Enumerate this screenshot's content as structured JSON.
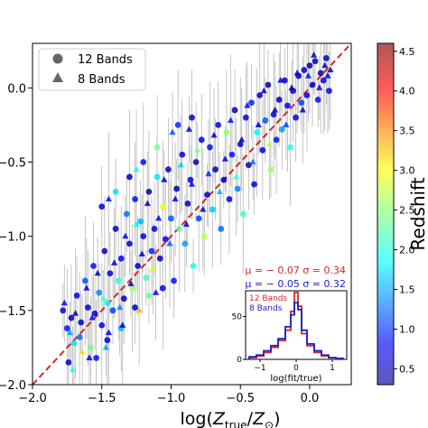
{
  "chart_data": {
    "type": "scatter",
    "xlabel_math": {
      "base": "log(",
      "Z1": "Z",
      "sub1": "true",
      "slash": "/",
      "Z2": "Z",
      "sub2": "⊙",
      "close": ")"
    },
    "ylabel": "",
    "xlim": [
      -2.0,
      0.3
    ],
    "ylim": [
      -2.0,
      0.3
    ],
    "x_ticks": [
      -2.0,
      -1.5,
      -1.0,
      -0.5,
      0.0
    ],
    "x_tick_labels": [
      "−2.0",
      "−1.5",
      "−1.0",
      "−0.5",
      "0.0"
    ],
    "y_ticks": [
      -2.0,
      -1.5,
      -1.0,
      -0.5,
      0.0
    ],
    "y_tick_labels": [
      "−2.0",
      "−1.5",
      "−1.0",
      "−0.5",
      "0.0"
    ],
    "grid": false,
    "legend": {
      "placement": "top-left",
      "entries": [
        {
          "label": "12 Bands",
          "marker": "circle"
        },
        {
          "label": "8 Bands",
          "marker": "triangle"
        }
      ]
    },
    "one_to_one_line": {
      "style": "dashed",
      "color": "#d62728",
      "from": [
        -2.0,
        -2.0
      ],
      "to": [
        0.3,
        0.3
      ]
    },
    "stats": [
      {
        "label": "12 Bands",
        "text": "μ = − 0.07  σ = 0.34",
        "color": "#d62728"
      },
      {
        "label": "8 Bands",
        "text": "μ = − 0.05  σ = 0.32",
        "color": "#1f1fc8"
      }
    ],
    "colorbar": {
      "label": "Redshift",
      "range": [
        0.3,
        4.6
      ],
      "ticks": [
        0.5,
        1.0,
        1.5,
        2.0,
        2.5,
        3.0,
        3.5,
        4.0,
        4.5
      ],
      "tick_labels": [
        "0.5",
        "1.0",
        "1.5",
        "2.0",
        "2.5",
        "3.0",
        "3.5",
        "4.0",
        "4.5"
      ],
      "colormap": "jet"
    },
    "series": [
      {
        "name": "12 Bands",
        "marker": "circle",
        "points": [
          [
            -1.78,
            -1.5,
            0.7
          ],
          [
            -1.75,
            -1.62,
            0.9
          ],
          [
            -1.72,
            -1.55,
            0.6
          ],
          [
            -1.7,
            -1.72,
            1.8
          ],
          [
            -1.68,
            -1.4,
            0.8
          ],
          [
            -1.65,
            -1.58,
            0.5
          ],
          [
            -1.62,
            -1.3,
            1.2
          ],
          [
            -1.6,
            -1.48,
            0.7
          ],
          [
            -1.58,
            -1.75,
            2.4
          ],
          [
            -1.56,
            -1.2,
            0.9
          ],
          [
            -1.55,
            -1.52,
            0.6
          ],
          [
            -1.52,
            -1.38,
            1.4
          ],
          [
            -1.5,
            -1.6,
            0.8
          ],
          [
            -1.48,
            -1.1,
            0.5
          ],
          [
            -1.46,
            -1.45,
            1.9
          ],
          [
            -1.44,
            -1.25,
            0.7
          ],
          [
            -1.42,
            -1.5,
            1.1
          ],
          [
            -1.4,
            -0.95,
            0.6
          ],
          [
            -1.38,
            -1.3,
            2.1
          ],
          [
            -1.36,
            -1.15,
            0.8
          ],
          [
            -1.34,
            -1.42,
            0.5
          ],
          [
            -1.32,
            -0.85,
            1.3
          ],
          [
            -1.3,
            -1.05,
            0.7
          ],
          [
            -1.28,
            -1.35,
            2.6
          ],
          [
            -1.26,
            -0.75,
            0.9
          ],
          [
            -1.24,
            -1.2,
            0.6
          ],
          [
            -1.22,
            -0.9,
            1.6
          ],
          [
            -1.2,
            -1.0,
            0.8
          ],
          [
            -1.18,
            -1.28,
            2.2
          ],
          [
            -1.16,
            -0.7,
            0.5
          ],
          [
            -1.14,
            -1.1,
            1.0
          ],
          [
            -1.12,
            -0.95,
            0.7
          ],
          [
            -1.1,
            -0.6,
            1.8
          ],
          [
            -1.08,
            -1.15,
            0.6
          ],
          [
            -1.06,
            -0.8,
            2.9
          ],
          [
            -1.04,
            -1.02,
            0.8
          ],
          [
            -1.02,
            -0.55,
            0.6
          ],
          [
            -1.0,
            -0.88,
            1.2
          ],
          [
            -0.98,
            -1.3,
            0.9
          ],
          [
            -0.96,
            -0.68,
            0.5
          ],
          [
            -0.94,
            -0.95,
            2.3
          ],
          [
            -0.92,
            -0.45,
            0.7
          ],
          [
            -0.9,
            -1.05,
            1.5
          ],
          [
            -0.88,
            -0.78,
            0.6
          ],
          [
            -0.86,
            -0.62,
            0.8
          ],
          [
            -0.84,
            -1.2,
            2.0
          ],
          [
            -0.82,
            -0.5,
            0.5
          ],
          [
            -0.8,
            -0.88,
            1.1
          ],
          [
            -0.78,
            -0.35,
            0.7
          ],
          [
            -0.76,
            -1.0,
            2.7
          ],
          [
            -0.74,
            -0.72,
            0.6
          ],
          [
            -0.72,
            -0.4,
            0.9
          ],
          [
            -0.7,
            -0.82,
            1.7
          ],
          [
            -0.68,
            -0.55,
            0.5
          ],
          [
            -0.66,
            -0.25,
            0.8
          ],
          [
            -0.64,
            -0.95,
            1.3
          ],
          [
            -0.62,
            -0.62,
            0.6
          ],
          [
            -0.6,
            -0.3,
            2.5
          ],
          [
            -0.58,
            -0.75,
            0.7
          ],
          [
            -0.56,
            -0.45,
            0.9
          ],
          [
            -0.54,
            -0.15,
            0.5
          ],
          [
            -0.52,
            -0.68,
            1.4
          ],
          [
            -0.5,
            -0.38,
            0.6
          ],
          [
            -0.48,
            -0.85,
            2.2
          ],
          [
            -0.46,
            -0.2,
            0.8
          ],
          [
            -0.44,
            -0.52,
            0.5
          ],
          [
            -0.42,
            -0.1,
            1.0
          ],
          [
            -0.4,
            -0.65,
            0.7
          ],
          [
            -0.38,
            -0.3,
            1.9
          ],
          [
            -0.36,
            -0.05,
            0.6
          ],
          [
            -0.34,
            -0.42,
            0.8
          ],
          [
            -0.32,
            -0.22,
            1.2
          ],
          [
            -0.3,
            0.02,
            0.5
          ],
          [
            -0.28,
            -0.55,
            2.6
          ],
          [
            -0.26,
            -0.18,
            0.7
          ],
          [
            -0.24,
            -0.35,
            0.9
          ],
          [
            -0.22,
            -0.08,
            0.6
          ],
          [
            -0.2,
            -0.28,
            1.5
          ],
          [
            -0.18,
            0.05,
            0.5
          ],
          [
            -0.16,
            -0.12,
            0.8
          ],
          [
            -0.14,
            -0.4,
            2.0
          ],
          [
            -0.12,
            -0.02,
            0.6
          ],
          [
            -0.1,
            -0.2,
            0.7
          ],
          [
            -0.08,
            0.08,
            0.5
          ],
          [
            -0.06,
            -0.1,
            1.1
          ],
          [
            -0.04,
            0.12,
            0.6
          ],
          [
            -0.02,
            -0.05,
            0.8
          ],
          [
            0.0,
            0.15,
            0.5
          ],
          [
            0.02,
            0.02,
            0.7
          ],
          [
            0.04,
            0.18,
            0.6
          ],
          [
            0.06,
            -0.08,
            0.9
          ],
          [
            0.08,
            0.1,
            0.5
          ],
          [
            0.1,
            0.05,
            0.7
          ],
          [
            0.12,
            0.2,
            0.6
          ],
          [
            0.14,
            -0.02,
            0.8
          ],
          [
            -1.74,
            -1.85,
            0.6
          ],
          [
            -1.66,
            -1.68,
            1.3
          ],
          [
            -1.54,
            -1.82,
            0.9
          ],
          [
            -1.46,
            -1.7,
            0.7
          ],
          [
            -1.36,
            -1.62,
            1.6
          ],
          [
            -1.26,
            -1.48,
            0.6
          ],
          [
            -1.16,
            -1.4,
            2.3
          ],
          [
            -1.06,
            -1.35,
            0.8
          ],
          [
            -0.95,
            -0.25,
            1.0
          ],
          [
            -0.85,
            -0.2,
            0.6
          ],
          [
            -1.5,
            -0.8,
            0.7
          ],
          [
            -1.4,
            -0.7,
            1.8
          ],
          [
            -1.3,
            -0.6,
            0.5
          ],
          [
            -1.2,
            -0.5,
            0.9
          ],
          [
            -1.1,
            -0.4,
            2.4
          ]
        ]
      },
      {
        "name": "8 Bands",
        "marker": "triangle",
        "points": [
          [
            -1.77,
            -1.45,
            0.8
          ],
          [
            -1.73,
            -1.65,
            1.5
          ],
          [
            -1.69,
            -1.52,
            0.6
          ],
          [
            -1.64,
            -1.78,
            3.1
          ],
          [
            -1.61,
            -1.35,
            0.7
          ],
          [
            -1.57,
            -1.55,
            0.9
          ],
          [
            -1.53,
            -1.25,
            0.5
          ],
          [
            -1.49,
            -1.42,
            2.2
          ],
          [
            -1.45,
            -1.65,
            0.7
          ],
          [
            -1.41,
            -1.18,
            0.6
          ],
          [
            -1.37,
            -1.48,
            1.4
          ],
          [
            -1.33,
            -1.0,
            0.8
          ],
          [
            -1.29,
            -1.32,
            0.5
          ],
          [
            -1.25,
            -0.92,
            1.9
          ],
          [
            -1.21,
            -1.12,
            0.7
          ],
          [
            -1.17,
            -0.78,
            0.6
          ],
          [
            -1.13,
            -1.22,
            2.8
          ],
          [
            -1.09,
            -0.88,
            0.8
          ],
          [
            -1.05,
            -0.62,
            0.5
          ],
          [
            -1.01,
            -1.05,
            1.2
          ],
          [
            -0.97,
            -0.75,
            0.7
          ],
          [
            -0.93,
            -0.52,
            1.7
          ],
          [
            -0.89,
            -0.92,
            0.6
          ],
          [
            -0.85,
            -0.65,
            0.8
          ],
          [
            -0.81,
            -0.42,
            2.4
          ],
          [
            -0.77,
            -0.82,
            0.5
          ],
          [
            -0.73,
            -0.58,
            1.0
          ],
          [
            -0.69,
            -0.32,
            0.7
          ],
          [
            -0.65,
            -0.7,
            1.6
          ],
          [
            -0.61,
            -0.48,
            0.6
          ],
          [
            -0.57,
            -0.22,
            0.9
          ],
          [
            -0.53,
            -0.6,
            2.1
          ],
          [
            -0.49,
            -0.35,
            0.5
          ],
          [
            -0.45,
            -0.12,
            0.8
          ],
          [
            -0.41,
            -0.5,
            1.3
          ],
          [
            -0.37,
            -0.25,
            0.6
          ],
          [
            -0.33,
            -0.02,
            0.7
          ],
          [
            -0.29,
            -0.38,
            2.7
          ],
          [
            -0.25,
            -0.15,
            0.5
          ],
          [
            -0.21,
            0.05,
            0.8
          ],
          [
            -0.17,
            -0.25,
            1.1
          ],
          [
            -0.13,
            0.0,
            0.6
          ],
          [
            -0.09,
            0.1,
            0.7
          ],
          [
            -0.05,
            -0.15,
            0.5
          ],
          [
            -0.01,
            0.08,
            0.9
          ],
          [
            0.03,
            0.22,
            0.6
          ],
          [
            0.07,
            0.0,
            0.8
          ],
          [
            0.11,
            0.15,
            0.5
          ],
          [
            0.13,
            0.08,
            0.7
          ],
          [
            0.15,
            0.12,
            0.6
          ],
          [
            -1.71,
            -1.9,
            2.0
          ],
          [
            -1.59,
            -1.82,
            0.8
          ],
          [
            -1.47,
            -1.75,
            1.5
          ],
          [
            -1.35,
            -1.6,
            0.6
          ],
          [
            -1.23,
            -1.5,
            3.3
          ],
          [
            -1.11,
            -1.38,
            0.7
          ],
          [
            -0.99,
            -0.3,
            1.2
          ],
          [
            -0.87,
            -0.28,
            0.6
          ],
          [
            -1.45,
            -0.75,
            0.9
          ],
          [
            -1.25,
            -0.55,
            2.0
          ]
        ]
      }
    ],
    "inset": {
      "type": "histogram",
      "xlabel": "log(fit/true)",
      "xlim": [
        -1.4,
        1.4
      ],
      "ylim": [
        0,
        80
      ],
      "x_ticks": [
        -1,
        0,
        1
      ],
      "x_tick_labels": [
        "−1",
        "0",
        "1"
      ],
      "y_ticks": [
        0,
        50
      ],
      "y_tick_labels": [
        "0",
        "50"
      ],
      "bin_edges": [
        -1.3,
        -1.1,
        -0.9,
        -0.7,
        -0.5,
        -0.3,
        -0.15,
        -0.05,
        0.05,
        0.15,
        0.3,
        0.5,
        0.7,
        0.9,
        1.1,
        1.3
      ],
      "legend_entries": [
        {
          "label": "12 Bands",
          "color": "#d62728"
        },
        {
          "label": "8 Bands",
          "color": "#1f1fc8"
        }
      ],
      "series": [
        {
          "name": "12 Bands",
          "color": "#d62728",
          "counts": [
            2,
            4,
            8,
            14,
            22,
            34,
            56,
            78,
            62,
            30,
            16,
            8,
            4,
            2,
            1
          ]
        },
        {
          "name": "8 Bands",
          "color": "#1f1fc8",
          "counts": [
            3,
            5,
            10,
            16,
            24,
            38,
            52,
            66,
            58,
            34,
            18,
            10,
            5,
            2,
            1
          ]
        }
      ]
    }
  }
}
